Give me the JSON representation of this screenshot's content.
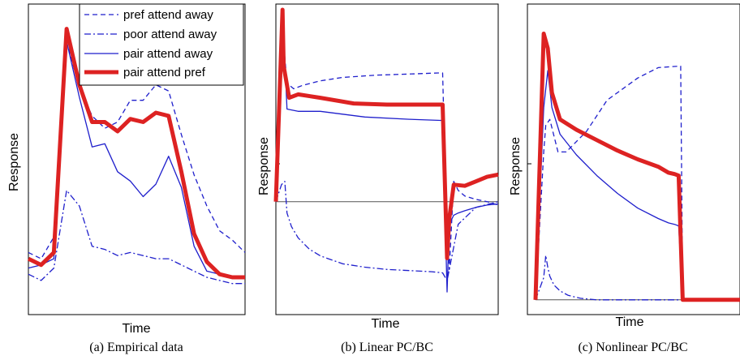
{
  "colors": {
    "blue": "#1f1fcc",
    "red": "#dd2222",
    "axis": "#000000",
    "baseline": "#555555"
  },
  "legend": [
    "pref attend away",
    "poor attend away",
    "pair attend away",
    "pair attend pref"
  ],
  "chart_data": [
    {
      "type": "line",
      "caption": "(a) Empirical data",
      "xlabel": "Time",
      "ylabel": "Response",
      "legend_position": "top-right",
      "xlim": [
        0,
        17
      ],
      "ylim": [
        0,
        100
      ],
      "x": [
        0,
        1,
        2,
        3,
        4,
        5,
        6,
        7,
        8,
        9,
        10,
        11,
        12,
        13,
        14,
        15,
        16,
        17
      ],
      "series": [
        {
          "name": "pref attend away",
          "style": "dashed",
          "values": [
            20,
            18,
            25,
            88,
            73,
            64,
            60,
            62,
            69,
            69,
            74,
            72,
            58,
            45,
            35,
            27,
            24,
            20
          ]
        },
        {
          "name": "poor attend away",
          "style": "dashdot",
          "values": [
            13,
            11,
            15,
            40,
            35,
            22,
            21,
            19,
            20,
            19,
            18,
            18,
            16,
            14,
            12,
            11,
            10,
            10
          ]
        },
        {
          "name": "pair attend away",
          "style": "solid",
          "values": [
            15,
            16,
            18,
            88,
            70,
            54,
            55,
            46,
            43,
            38,
            42,
            51,
            41,
            22,
            14,
            13,
            12,
            12
          ]
        },
        {
          "name": "pair attend pref",
          "style": "thick",
          "values": [
            18,
            16,
            20,
            92,
            74,
            62,
            62,
            59,
            63,
            62,
            65,
            64,
            46,
            26,
            17,
            13,
            12,
            12
          ]
        }
      ]
    },
    {
      "type": "line",
      "caption": "(b) Linear PC/BC",
      "xlabel": "Time",
      "ylabel": "Response",
      "xlim": [
        0,
        100
      ],
      "ylim": [
        -100,
        175
      ],
      "baseline": 0,
      "series": [
        {
          "name": "pref attend away",
          "style": "dashed",
          "x": [
            0,
            2.5,
            3.5,
            5,
            8,
            12,
            20,
            30,
            45,
            60,
            73,
            75,
            76.5,
            78,
            80,
            82,
            85,
            90,
            95,
            100
          ],
          "values": [
            0,
            110,
            140,
            105,
            100,
            103,
            107,
            110,
            112,
            113,
            114,
            114,
            0,
            -60,
            18,
            10,
            5,
            2,
            0,
            -3
          ]
        },
        {
          "name": "poor attend away",
          "style": "dashdot",
          "x": [
            0,
            2.5,
            4,
            5,
            7,
            10,
            15,
            20,
            30,
            40,
            50,
            60,
            70,
            75,
            77,
            79,
            82,
            90,
            100
          ],
          "values": [
            0,
            15,
            18,
            -10,
            -22,
            -32,
            -42,
            -48,
            -55,
            -58,
            -60,
            -61,
            -62,
            -63,
            -70,
            -50,
            -20,
            -5,
            0
          ]
        },
        {
          "name": "pair attend away",
          "style": "solid",
          "x": [
            0,
            2.5,
            3.5,
            5,
            10,
            20,
            40,
            60,
            74,
            75,
            77,
            78,
            80,
            82,
            85,
            90,
            95,
            100
          ],
          "values": [
            0,
            135,
            150,
            82,
            80,
            80,
            75,
            73,
            72,
            72,
            -80,
            -20,
            -12,
            -10,
            -8,
            -5,
            -3,
            -2
          ]
        },
        {
          "name": "pair attend pref",
          "style": "thick",
          "x": [
            0,
            3,
            3.5,
            6,
            10,
            20,
            35,
            50,
            65,
            73,
            75,
            77,
            78,
            80,
            85,
            90,
            95,
            100
          ],
          "values": [
            0,
            170,
            120,
            92,
            95,
            92,
            87,
            86,
            86,
            86,
            86,
            -50,
            -15,
            15,
            14,
            18,
            22,
            24
          ]
        }
      ]
    },
    {
      "type": "line",
      "caption": "(c) Nonlinear PC/BC",
      "xlabel": "Time",
      "ylabel": "Response",
      "xlim": [
        0,
        100
      ],
      "ylim": [
        -10,
        200
      ],
      "baseline": 0,
      "series": [
        {
          "name": "pref attend away",
          "style": "dashed",
          "x": [
            0,
            4,
            5,
            7,
            11,
            15,
            25,
            35,
            50,
            60,
            70,
            71,
            72,
            74,
            76,
            80,
            90,
            100
          ],
          "values": [
            0,
            100,
            118,
            122,
            100,
            100,
            114,
            135,
            150,
            157,
            158,
            158,
            0,
            0,
            0,
            0,
            0,
            0
          ]
        },
        {
          "name": "poor attend away",
          "style": "dashdot",
          "x": [
            0,
            4,
            5,
            6,
            7,
            9,
            12,
            16,
            22,
            30,
            40,
            60,
            80,
            100
          ],
          "values": [
            0,
            15,
            30,
            22,
            16,
            10,
            6,
            3,
            1,
            0,
            0,
            0,
            0,
            0
          ]
        },
        {
          "name": "pair attend away",
          "style": "solid",
          "x": [
            0,
            4,
            6,
            8,
            12,
            20,
            30,
            40,
            50,
            60,
            65,
            68,
            70,
            72,
            80,
            100
          ],
          "values": [
            0,
            130,
            155,
            130,
            112,
            98,
            84,
            72,
            62,
            55,
            52,
            51,
            50,
            0,
            0,
            0
          ]
        },
        {
          "name": "pair attend pref",
          "style": "thick",
          "x": [
            0,
            4,
            6,
            8,
            12,
            20,
            30,
            40,
            50,
            60,
            65,
            68,
            70,
            72,
            80,
            100
          ],
          "values": [
            0,
            180,
            170,
            140,
            122,
            115,
            108,
            101,
            95,
            90,
            86,
            85,
            84,
            0,
            0,
            0
          ]
        }
      ]
    }
  ]
}
